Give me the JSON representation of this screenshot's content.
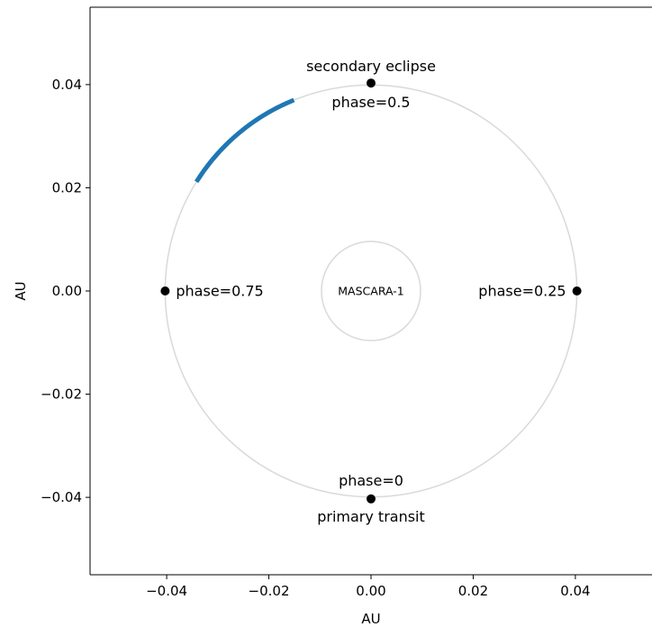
{
  "chart_data": {
    "type": "scatter",
    "xlabel": "AU",
    "ylabel": "AU",
    "xlim": [
      -0.055,
      0.055
    ],
    "ylim": [
      -0.055,
      0.055
    ],
    "xticks": [
      -0.04,
      -0.02,
      0.0,
      0.02,
      0.04
    ],
    "yticks": [
      -0.04,
      -0.02,
      0.0,
      0.02,
      0.04
    ],
    "xtick_labels": [
      "−0.04",
      "−0.02",
      "0.00",
      "0.02",
      "0.04"
    ],
    "ytick_labels": [
      "−0.04",
      "−0.02",
      "0.00",
      "0.02",
      "0.04"
    ],
    "grid": false,
    "orbit": {
      "radius": 0.0403,
      "color": "#d9d9d9"
    },
    "star": {
      "label": "MASCARA-1",
      "radius": 0.0097,
      "color": "#d9d9d9"
    },
    "highlight_arc": {
      "color": "#1f77b4",
      "start_deg": 112,
      "end_deg": 148
    },
    "points": [
      {
        "x": 0.0,
        "y": -0.0403,
        "label": "phase=0",
        "sublabel": "primary transit"
      },
      {
        "x": 0.0403,
        "y": 0.0,
        "label": "phase=0.25",
        "sublabel": ""
      },
      {
        "x": 0.0,
        "y": 0.0403,
        "label": "phase=0.5",
        "sublabel": "secondary eclipse"
      },
      {
        "x": -0.0403,
        "y": 0.0,
        "label": "phase=0.75",
        "sublabel": ""
      }
    ]
  }
}
